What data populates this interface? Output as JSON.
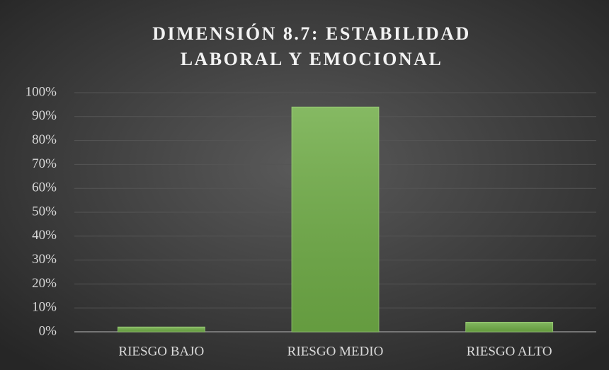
{
  "chart_data": {
    "type": "bar",
    "title": [
      "DIMENSIÓN 8.7: ESTABILIDAD",
      "LABORAL Y EMOCIONAL"
    ],
    "categories": [
      "RIESGO BAJO",
      "RIESGO MEDIO",
      "RIESGO ALTO"
    ],
    "values": [
      2,
      94,
      4
    ],
    "color": "#70ad47",
    "ylim": [
      0,
      100
    ],
    "yticks": [
      {
        "value": 0,
        "label": "0%"
      },
      {
        "value": 10,
        "label": "10%"
      },
      {
        "value": 20,
        "label": "20%"
      },
      {
        "value": 30,
        "label": "30%"
      },
      {
        "value": 40,
        "label": "40%"
      },
      {
        "value": 50,
        "label": "50%"
      },
      {
        "value": 60,
        "label": "60%"
      },
      {
        "value": 70,
        "label": "70%"
      },
      {
        "value": 80,
        "label": "80%"
      },
      {
        "value": 90,
        "label": "90%"
      },
      {
        "value": 100,
        "label": "100%"
      }
    ],
    "grid": true
  }
}
